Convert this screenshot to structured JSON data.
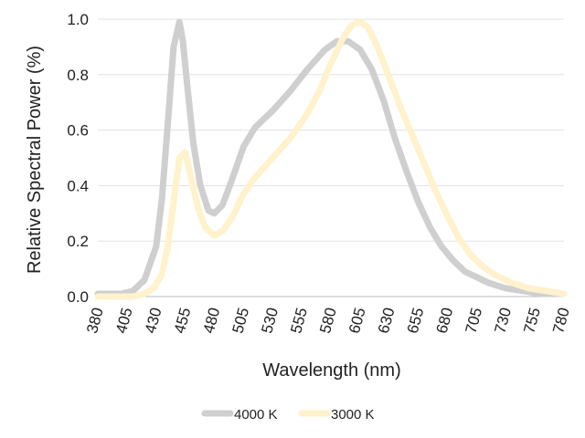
{
  "chart_data": {
    "type": "line",
    "title": "",
    "xlabel": "Wavelength (nm)",
    "ylabel": "Relative Spectral Power (%)",
    "xlim": [
      380,
      780
    ],
    "ylim": [
      0,
      1.0
    ],
    "x_ticks": [
      "380",
      "405",
      "430",
      "455",
      "480",
      "505",
      "530",
      "555",
      "580",
      "605",
      "630",
      "655",
      "680",
      "705",
      "730",
      "755",
      "780"
    ],
    "y_ticks": [
      "0.0",
      "0.2",
      "0.4",
      "0.6",
      "0.8",
      "1.0"
    ],
    "grid": "horizontal",
    "legend_position": "bottom",
    "series": [
      {
        "name": "4000 K",
        "color": "#cfcfcf",
        "points": [
          [
            380,
            0.01
          ],
          [
            400,
            0.01
          ],
          [
            410,
            0.02
          ],
          [
            420,
            0.06
          ],
          [
            430,
            0.18
          ],
          [
            435,
            0.35
          ],
          [
            440,
            0.62
          ],
          [
            445,
            0.9
          ],
          [
            450,
            0.99
          ],
          [
            453,
            0.92
          ],
          [
            457,
            0.75
          ],
          [
            462,
            0.55
          ],
          [
            468,
            0.4
          ],
          [
            475,
            0.31
          ],
          [
            480,
            0.3
          ],
          [
            487,
            0.33
          ],
          [
            495,
            0.42
          ],
          [
            505,
            0.54
          ],
          [
            515,
            0.61
          ],
          [
            530,
            0.67
          ],
          [
            545,
            0.74
          ],
          [
            560,
            0.82
          ],
          [
            575,
            0.89
          ],
          [
            585,
            0.92
          ],
          [
            595,
            0.92
          ],
          [
            605,
            0.89
          ],
          [
            615,
            0.82
          ],
          [
            625,
            0.71
          ],
          [
            635,
            0.57
          ],
          [
            645,
            0.45
          ],
          [
            655,
            0.34
          ],
          [
            665,
            0.25
          ],
          [
            675,
            0.18
          ],
          [
            685,
            0.13
          ],
          [
            695,
            0.09
          ],
          [
            705,
            0.07
          ],
          [
            715,
            0.05
          ],
          [
            730,
            0.03
          ],
          [
            745,
            0.02
          ],
          [
            760,
            0.01
          ],
          [
            780,
            0.01
          ]
        ]
      },
      {
        "name": "3000 K",
        "color": "#fff2cc",
        "points": [
          [
            380,
            0.0
          ],
          [
            410,
            0.0
          ],
          [
            420,
            0.01
          ],
          [
            428,
            0.03
          ],
          [
            435,
            0.08
          ],
          [
            440,
            0.18
          ],
          [
            445,
            0.34
          ],
          [
            450,
            0.5
          ],
          [
            455,
            0.52
          ],
          [
            460,
            0.43
          ],
          [
            466,
            0.32
          ],
          [
            472,
            0.25
          ],
          [
            480,
            0.22
          ],
          [
            488,
            0.24
          ],
          [
            496,
            0.29
          ],
          [
            505,
            0.37
          ],
          [
            515,
            0.43
          ],
          [
            530,
            0.5
          ],
          [
            545,
            0.57
          ],
          [
            560,
            0.66
          ],
          [
            570,
            0.74
          ],
          [
            580,
            0.84
          ],
          [
            590,
            0.93
          ],
          [
            598,
            0.98
          ],
          [
            605,
            0.99
          ],
          [
            612,
            0.97
          ],
          [
            620,
            0.9
          ],
          [
            630,
            0.79
          ],
          [
            640,
            0.68
          ],
          [
            650,
            0.58
          ],
          [
            660,
            0.48
          ],
          [
            670,
            0.38
          ],
          [
            680,
            0.29
          ],
          [
            690,
            0.21
          ],
          [
            700,
            0.15
          ],
          [
            710,
            0.11
          ],
          [
            720,
            0.08
          ],
          [
            735,
            0.05
          ],
          [
            750,
            0.03
          ],
          [
            765,
            0.02
          ],
          [
            780,
            0.01
          ]
        ]
      }
    ]
  }
}
